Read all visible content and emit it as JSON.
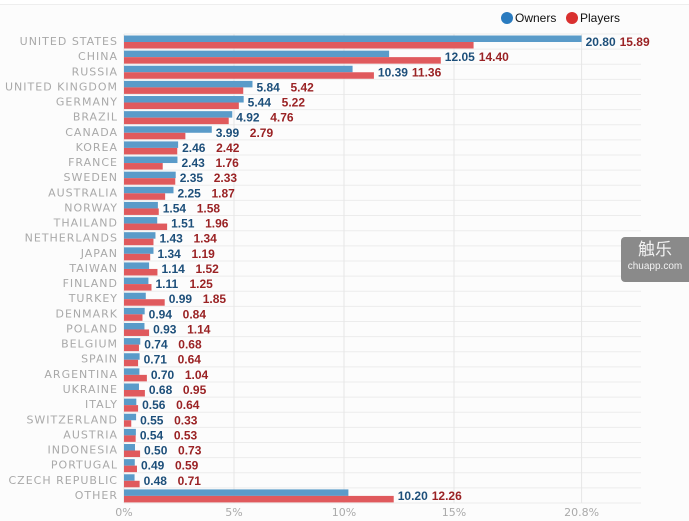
{
  "chart_data": {
    "type": "bar",
    "orientation": "horizontal",
    "categories": [
      "UNITED STATES",
      "CHINA",
      "RUSSIA",
      "UNITED KINGDOM",
      "GERMANY",
      "BRAZIL",
      "CANADA",
      "KOREA",
      "FRANCE",
      "SWEDEN",
      "AUSTRALIA",
      "NORWAY",
      "THAILAND",
      "NETHERLANDS",
      "JAPAN",
      "TAIWAN",
      "FINLAND",
      "TURKEY",
      "DENMARK",
      "POLAND",
      "BELGIUM",
      "SPAIN",
      "ARGENTINA",
      "UKRAINE",
      "ITALY",
      "SWITZERLAND",
      "AUSTRIA",
      "INDONESIA",
      "PORTUGAL",
      "CZECH REPUBLIC",
      "OTHER"
    ],
    "series": [
      {
        "name": "Owners",
        "color": "#5a9bc9",
        "values": [
          20.8,
          12.05,
          10.39,
          5.84,
          5.44,
          4.92,
          3.99,
          2.46,
          2.43,
          2.35,
          2.25,
          1.54,
          1.51,
          1.43,
          1.34,
          1.14,
          1.11,
          0.99,
          0.94,
          0.93,
          0.74,
          0.71,
          0.7,
          0.68,
          0.56,
          0.55,
          0.54,
          0.5,
          0.49,
          0.48,
          10.2
        ]
      },
      {
        "name": "Players",
        "color": "#e05a5d",
        "values": [
          15.89,
          14.4,
          11.36,
          5.42,
          5.22,
          4.76,
          2.79,
          2.42,
          1.76,
          2.33,
          1.87,
          1.58,
          1.96,
          1.34,
          1.19,
          1.52,
          1.25,
          1.85,
          0.84,
          1.14,
          0.68,
          0.64,
          1.04,
          0.95,
          0.64,
          0.33,
          0.53,
          0.73,
          0.59,
          0.71,
          12.26
        ]
      }
    ],
    "xticks": [
      "0%",
      "5%",
      "10%",
      "15%",
      "20.8%"
    ],
    "xtick_values": [
      0,
      5,
      10,
      15,
      20.8
    ],
    "xlim": [
      0,
      20.8
    ],
    "grid": true,
    "legend": "top-right",
    "legend_colors": {
      "Owners": "#2a7bbf",
      "Players": "#d9302f"
    }
  },
  "watermark": {
    "logo": "触乐",
    "site": "chuapp.com"
  }
}
